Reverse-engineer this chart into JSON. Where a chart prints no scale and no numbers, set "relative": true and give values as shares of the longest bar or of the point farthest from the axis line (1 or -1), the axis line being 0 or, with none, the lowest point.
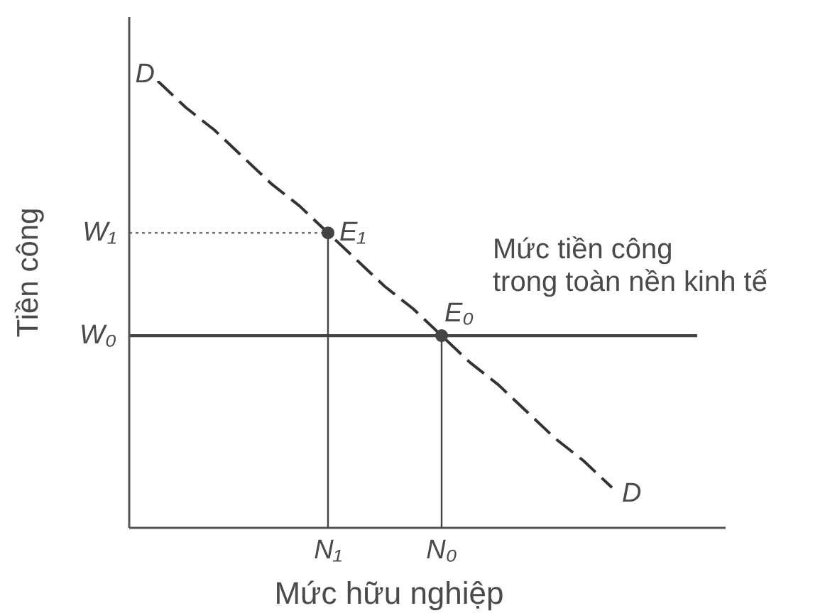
{
  "chart_data": {
    "type": "line",
    "relative": true,
    "xlabel": "Mức hữu nghiệp",
    "ylabel": "Tiền công",
    "tick_labels": "x",
    "categories": [
      null,
      null,
      null,
      null,
      null,
      null,
      null,
      "N₁",
      null,
      null,
      null,
      "N₀",
      null,
      null,
      null,
      null,
      null,
      null,
      null,
      null,
      null,
      null
    ],
    "series": [
      {
        "name": "D",
        "line_style": "dashed",
        "color": "#333333",
        "values": [
          null,
          1.0,
          0.94,
          0.89,
          0.83,
          0.77,
          0.72,
          0.66,
          0.6,
          0.54,
          0.49,
          0.43,
          0.37,
          0.32,
          0.26,
          0.2,
          0.15,
          0.09,
          null,
          null,
          null,
          null
        ]
      },
      {
        "name": "W₁",
        "line_style": "dotted",
        "color": "#707070",
        "values": [
          0.66,
          0.66,
          0.66,
          0.66,
          0.66,
          0.66,
          0.66,
          0.66,
          null,
          null,
          null,
          null,
          null,
          null,
          null,
          null,
          null,
          null,
          null,
          null,
          null,
          null
        ]
      },
      {
        "name": "W₀",
        "line_style": "solid",
        "color": "#444444",
        "values": [
          0.43,
          0.43,
          0.43,
          0.43,
          0.43,
          0.43,
          0.43,
          0.43,
          0.43,
          0.43,
          0.43,
          0.43,
          0.43,
          0.43,
          0.43,
          0.43,
          0.43,
          0.43,
          0.43,
          0.43,
          0.43,
          null
        ]
      },
      {
        "type": "lollipop",
        "marker": "circle",
        "color": "#444444",
        "values": [
          null,
          null,
          null,
          null,
          null,
          null,
          null,
          0.66,
          null,
          null,
          null,
          0.43,
          null,
          null,
          null,
          null,
          null,
          null,
          null,
          null,
          null,
          null
        ]
      }
    ],
    "annotations": [
      "Mức tiền công\ntrong toàn nền kinh tế",
      {
        "text": "E₁",
        "x": "N₁",
        "y": 0.66
      },
      {
        "text": "E₀",
        "x": "N₀",
        "y": 0.43
      }
    ]
  }
}
